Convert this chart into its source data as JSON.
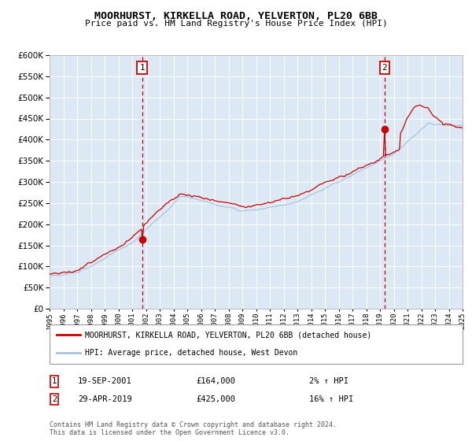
{
  "title": "MOORHURST, KIRKELLA ROAD, YELVERTON, PL20 6BB",
  "subtitle": "Price paid vs. HM Land Registry's House Price Index (HPI)",
  "legend_line1": "MOORHURST, KIRKELLA ROAD, YELVERTON, PL20 6BB (detached house)",
  "legend_line2": "HPI: Average price, detached house, West Devon",
  "annotation1_date": "19-SEP-2001",
  "annotation1_price": "£164,000",
  "annotation1_pct": "2% ↑ HPI",
  "annotation2_date": "29-APR-2019",
  "annotation2_price": "£425,000",
  "annotation2_pct": "16% ↑ HPI",
  "footer": "Contains HM Land Registry data © Crown copyright and database right 2024.\nThis data is licensed under the Open Government Licence v3.0.",
  "hpi_color": "#a8c4e0",
  "price_color": "#cc0000",
  "marker_color": "#cc0000",
  "dashed_line_color": "#cc0000",
  "plot_bg": "#dde8f5",
  "grid_color": "#ffffff",
  "fig_bg": "#ffffff",
  "ylim": [
    0,
    600000
  ],
  "yticks": [
    0,
    50000,
    100000,
    150000,
    200000,
    250000,
    300000,
    350000,
    400000,
    450000,
    500000,
    550000,
    600000
  ],
  "sale1_x": 2001.72,
  "sale1_y": 164000,
  "sale2_x": 2019.33,
  "sale2_y": 425000,
  "xmin": 1995,
  "xmax": 2025
}
